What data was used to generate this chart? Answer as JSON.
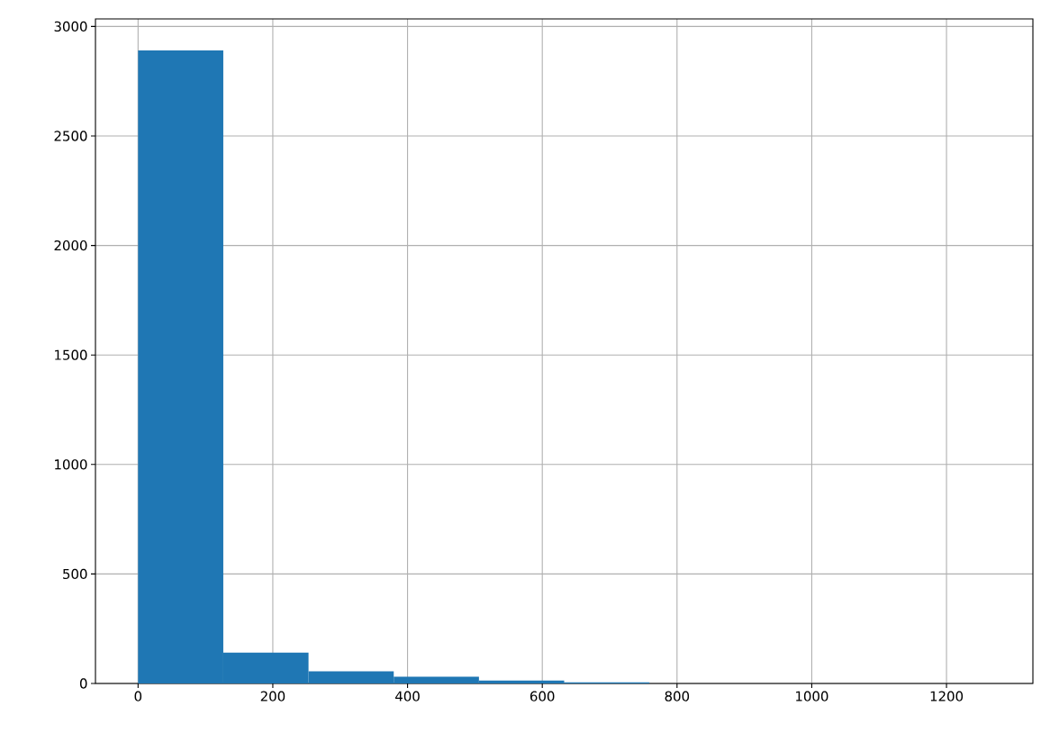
{
  "chart_data": {
    "type": "histogram",
    "bins": [
      0,
      126.5,
      253,
      379.5,
      506,
      632.5,
      759,
      885.5,
      1012,
      1138.5,
      1265
    ],
    "values": [
      2890,
      141,
      55,
      31,
      13,
      5,
      null,
      null,
      null,
      null
    ],
    "color": "#1f77b4",
    "xlim": [
      -63.25,
      1328.25
    ],
    "ylim": [
      0,
      3034.5
    ],
    "xticks": [
      0,
      200,
      400,
      600,
      800,
      1000,
      1200
    ],
    "yticks": [
      0,
      500,
      1000,
      1500,
      2000,
      2500,
      3000
    ],
    "grid": true
  }
}
